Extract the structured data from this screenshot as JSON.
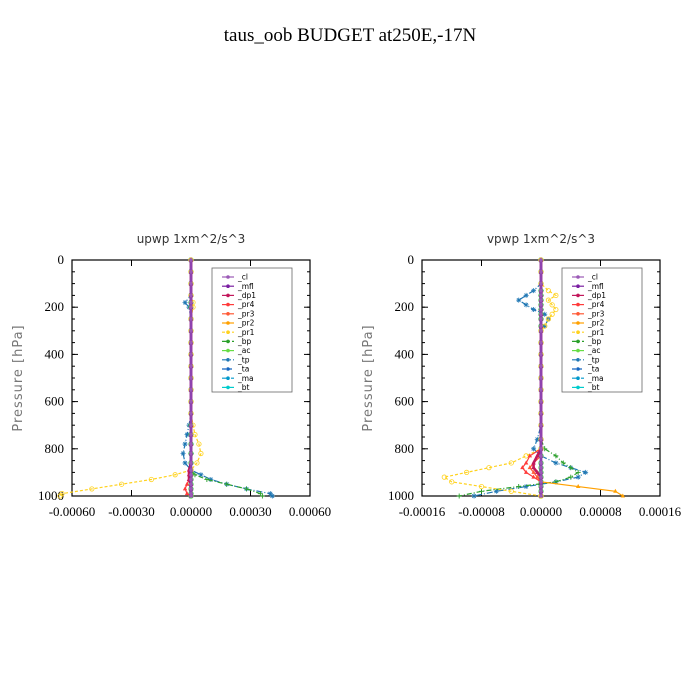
{
  "figure_title": "taus_oob  BUDGET at250E,-17N",
  "colors": {
    "_cl": "#9b59b6",
    "_mfl": "#7b1fa2",
    "_dp1": "#c2185b",
    "_pr4": "#ff3b3b",
    "_pr3": "#ff5a36",
    "_pr2": "#ffa000",
    "_pr1": "#ffd21f",
    "_bp": "#2ca02c",
    "_ac": "#66dd44",
    "_tp": "#1f77b4",
    "_ta": "#1565c0",
    "_ma": "#0099cc",
    "_bt": "#00cccc"
  },
  "chart_data": [
    {
      "type": "line",
      "title": "upwp   1xm^2/s^3",
      "ylabel": "Pressure [hPa]",
      "ylim": [
        1000,
        0
      ],
      "xlim": [
        -0.0006,
        0.0006
      ],
      "xticks": [
        "-0.00060",
        "-0.00030",
        "0.00000",
        "0.00030",
        "0.00060"
      ],
      "yticks": [
        "0",
        "200",
        "400",
        "600",
        "800",
        "1000"
      ],
      "grid": false,
      "legend_position": "top-right",
      "legend": [
        "_cl",
        "_mfl",
        "_dp1",
        "_pr4",
        "_pr3",
        "_pr2",
        "_pr1",
        "_bp",
        "_ac",
        "_tp",
        "_ta",
        "_ma",
        "_bt"
      ],
      "pressure": [
        0,
        50,
        100,
        150,
        180,
        200,
        250,
        300,
        350,
        400,
        450,
        500,
        550,
        600,
        650,
        700,
        740,
        780,
        820,
        860,
        890,
        910,
        930,
        950,
        970,
        990,
        1000
      ],
      "series": [
        {
          "name": "_cl",
          "values": [
            0,
            0,
            0,
            0,
            0,
            0,
            0,
            0,
            0,
            0,
            0,
            0,
            0,
            0,
            0,
            0,
            0,
            0,
            0,
            0,
            0,
            0,
            0,
            0,
            0,
            0,
            0
          ]
        },
        {
          "name": "_mfl",
          "values": [
            0,
            0,
            0,
            0,
            0,
            0,
            0,
            0,
            0,
            0,
            0,
            0,
            0,
            0,
            0,
            0,
            0,
            0,
            0,
            0,
            0,
            0,
            0,
            0,
            0,
            0,
            0
          ]
        },
        {
          "name": "_dp1",
          "values": [
            0,
            0,
            0,
            0,
            0,
            0,
            0,
            0,
            0,
            0,
            0,
            0,
            0,
            0,
            0,
            0,
            0,
            0,
            0,
            0,
            -1e-05,
            -1e-05,
            -1e-05,
            0,
            0,
            0,
            0
          ]
        },
        {
          "name": "_pr4",
          "values": [
            0,
            0,
            0,
            0,
            0,
            0,
            0,
            0,
            0,
            0,
            0,
            0,
            0,
            0,
            0,
            0,
            0,
            0,
            0,
            0,
            0,
            0,
            -1e-05,
            -2e-05,
            -3e-05,
            -2e-05,
            0
          ]
        },
        {
          "name": "_pr3",
          "values": [
            0,
            0,
            0,
            0,
            0,
            0,
            0,
            0,
            0,
            0,
            0,
            0,
            0,
            0,
            0,
            0,
            0,
            0,
            0,
            0,
            0,
            0,
            0,
            0,
            0,
            0,
            0
          ]
        },
        {
          "name": "_pr2",
          "values": [
            0,
            0,
            0,
            0,
            0,
            0,
            0,
            0,
            0,
            0,
            0,
            0,
            0,
            0,
            0,
            0,
            0,
            0,
            0,
            0,
            0,
            0,
            0,
            0,
            0,
            0,
            0
          ]
        },
        {
          "name": "_pr1",
          "values": [
            0,
            0,
            0,
            0,
            1e-05,
            1e-05,
            0,
            0,
            0,
            0,
            0,
            0,
            0,
            0,
            0,
            1e-05,
            2e-05,
            4e-05,
            5e-05,
            3e-05,
            0,
            -8e-05,
            -0.0002,
            -0.00035,
            -0.0005,
            -0.00065,
            -0.00066
          ]
        },
        {
          "name": "_bp",
          "values": [
            0,
            0,
            0,
            0,
            0,
            0,
            0,
            0,
            0,
            0,
            0,
            0,
            0,
            0,
            0,
            0,
            0,
            0,
            0,
            0,
            0,
            2e-05,
            8e-05,
            0.00018,
            0.00028,
            0.00035,
            0.00036
          ]
        },
        {
          "name": "_ac",
          "values": [
            0,
            0,
            0,
            0,
            0,
            0,
            0,
            0,
            0,
            0,
            0,
            0,
            0,
            0,
            0,
            0,
            0,
            0,
            0,
            0,
            0,
            0,
            0,
            0,
            0,
            0,
            0
          ]
        },
        {
          "name": "_tp",
          "values": [
            0,
            0,
            0,
            0,
            -3e-05,
            -1e-05,
            0,
            0,
            0,
            0,
            0,
            0,
            0,
            0,
            0,
            -1e-05,
            -2e-05,
            -3e-05,
            -4e-05,
            -3e-05,
            0,
            5e-05,
            0.0001,
            0.00018,
            0.00028,
            0.0004,
            0.00041
          ]
        },
        {
          "name": "_ta",
          "values": [
            0,
            0,
            0,
            0,
            0,
            0,
            0,
            0,
            0,
            0,
            0,
            0,
            0,
            0,
            0,
            0,
            0,
            0,
            0,
            0,
            0,
            0,
            0,
            0,
            0,
            0,
            0
          ]
        },
        {
          "name": "_ma",
          "values": [
            0,
            0,
            0,
            0,
            0,
            0,
            0,
            0,
            0,
            0,
            0,
            0,
            0,
            0,
            0,
            0,
            0,
            0,
            0,
            0,
            0,
            0,
            0,
            0,
            0,
            0,
            0
          ]
        },
        {
          "name": "_bt",
          "values": [
            0,
            0,
            0,
            0,
            0,
            0,
            0,
            0,
            0,
            0,
            0,
            0,
            0,
            0,
            0,
            0,
            0,
            0,
            0,
            0,
            0,
            0,
            0,
            0,
            0,
            0,
            0
          ]
        }
      ]
    },
    {
      "type": "line",
      "title": "vpwp   1xm^2/s^3",
      "ylabel": "Pressure [hPa]",
      "ylim": [
        1000,
        0
      ],
      "xlim": [
        -0.00016,
        0.00016
      ],
      "xticks": [
        "-0.00016",
        "-0.00008",
        "0.00000",
        "0.00008",
        "0.00016"
      ],
      "yticks": [
        "0",
        "200",
        "400",
        "600",
        "800",
        "1000"
      ],
      "grid": false,
      "legend_position": "top-right",
      "legend": [
        "_cl",
        "_mfl",
        "_dp1",
        "_pr4",
        "_pr3",
        "_pr2",
        "_pr1",
        "_bp",
        "_ac",
        "_tp",
        "_ta",
        "_ma",
        "_bt"
      ],
      "pressure": [
        0,
        50,
        100,
        130,
        150,
        170,
        190,
        210,
        230,
        250,
        280,
        300,
        350,
        400,
        450,
        500,
        550,
        600,
        650,
        700,
        760,
        800,
        830,
        860,
        880,
        900,
        920,
        940,
        960,
        980,
        1000
      ],
      "series": [
        {
          "name": "_cl",
          "values": [
            0,
            0,
            0,
            0,
            0,
            0,
            0,
            0,
            0,
            0,
            0,
            0,
            0,
            0,
            0,
            0,
            0,
            0,
            0,
            0,
            0,
            0,
            0,
            0,
            0,
            0,
            0,
            0,
            0,
            0,
            0
          ]
        },
        {
          "name": "_mfl",
          "values": [
            0,
            0,
            0,
            0,
            0,
            0,
            0,
            0,
            0,
            0,
            0,
            0,
            0,
            0,
            0,
            0,
            0,
            0,
            0,
            0,
            0,
            0,
            0,
            0,
            0,
            0,
            0,
            0,
            0,
            0,
            0
          ]
        },
        {
          "name": "_dp1",
          "values": [
            0,
            0,
            0,
            0,
            0,
            0,
            0,
            0,
            0,
            0,
            0,
            0,
            0,
            0,
            0,
            0,
            0,
            0,
            0,
            0,
            0,
            0,
            -5e-06,
            -1e-05,
            -1e-05,
            -5e-06,
            0,
            0,
            0,
            0,
            0
          ]
        },
        {
          "name": "_pr4",
          "values": [
            0,
            0,
            0,
            0,
            0,
            0,
            0,
            0,
            0,
            0,
            0,
            0,
            0,
            0,
            0,
            0,
            0,
            0,
            0,
            0,
            0,
            0,
            -1.5e-05,
            -2e-05,
            -2.5e-05,
            -2e-05,
            -1e-05,
            0,
            0,
            0,
            0
          ]
        },
        {
          "name": "_pr3",
          "values": [
            0,
            0,
            0,
            0,
            0,
            0,
            0,
            0,
            0,
            0,
            0,
            0,
            0,
            0,
            0,
            0,
            0,
            0,
            0,
            0,
            0,
            0,
            0,
            -1e-05,
            -1.5e-05,
            -1e-05,
            -5e-06,
            0,
            0,
            0,
            0
          ]
        },
        {
          "name": "_pr2",
          "values": [
            0,
            0,
            0,
            0,
            0,
            0,
            0,
            0,
            0,
            0,
            0,
            0,
            0,
            0,
            0,
            0,
            0,
            0,
            0,
            0,
            0,
            0,
            0,
            0,
            0,
            0,
            0,
            0,
            5e-05,
            0.0001,
            0.00011
          ]
        },
        {
          "name": "_pr1",
          "values": [
            0,
            0,
            0,
            1e-05,
            2e-05,
            1e-05,
            1.5e-05,
            2e-05,
            1.5e-05,
            1e-05,
            5e-06,
            0,
            0,
            0,
            0,
            0,
            0,
            0,
            0,
            0,
            0,
            0,
            -2e-05,
            -4e-05,
            -7e-05,
            -0.0001,
            -0.00013,
            -0.00012,
            -8e-05,
            -4e-05,
            0
          ]
        },
        {
          "name": "_bp",
          "values": [
            0,
            0,
            0,
            0,
            0,
            0,
            0,
            0,
            0,
            0,
            0,
            0,
            0,
            0,
            0,
            0,
            0,
            0,
            0,
            0,
            0,
            5e-06,
            2e-05,
            3e-05,
            4e-05,
            5e-05,
            4e-05,
            2e-05,
            -3e-05,
            -8e-05,
            -0.00011
          ]
        },
        {
          "name": "_ac",
          "values": [
            0,
            0,
            0,
            0,
            0,
            0,
            0,
            0,
            0,
            0,
            0,
            0,
            0,
            0,
            0,
            0,
            0,
            0,
            0,
            0,
            0,
            0,
            0,
            0,
            0,
            0,
            0,
            0,
            0,
            0,
            0
          ]
        },
        {
          "name": "_tp",
          "values": [
            0,
            0,
            0,
            -1e-05,
            -2e-05,
            -3e-05,
            -2e-05,
            -1e-05,
            5e-06,
            1e-05,
            5e-06,
            0,
            0,
            0,
            0,
            0,
            0,
            0,
            0,
            0,
            -5e-06,
            -1e-05,
            0,
            2e-05,
            4e-05,
            6e-05,
            5e-05,
            2e-05,
            -2e-05,
            -6e-05,
            -9e-05
          ]
        },
        {
          "name": "_ta",
          "values": [
            0,
            0,
            0,
            0,
            0,
            0,
            0,
            0,
            0,
            0,
            0,
            0,
            0,
            0,
            0,
            0,
            0,
            0,
            0,
            0,
            0,
            0,
            0,
            0,
            0,
            0,
            0,
            0,
            0,
            0,
            0
          ]
        },
        {
          "name": "_ma",
          "values": [
            0,
            0,
            0,
            0,
            0,
            0,
            0,
            0,
            0,
            0,
            0,
            0,
            0,
            0,
            0,
            0,
            0,
            0,
            0,
            0,
            0,
            0,
            0,
            0,
            0,
            0,
            0,
            0,
            0,
            0,
            0
          ]
        },
        {
          "name": "_bt",
          "values": [
            0,
            0,
            0,
            0,
            0,
            0,
            0,
            0,
            0,
            0,
            0,
            0,
            0,
            0,
            0,
            0,
            0,
            0,
            0,
            0,
            0,
            0,
            0,
            0,
            0,
            0,
            0,
            0,
            0,
            0,
            0
          ]
        }
      ]
    }
  ]
}
